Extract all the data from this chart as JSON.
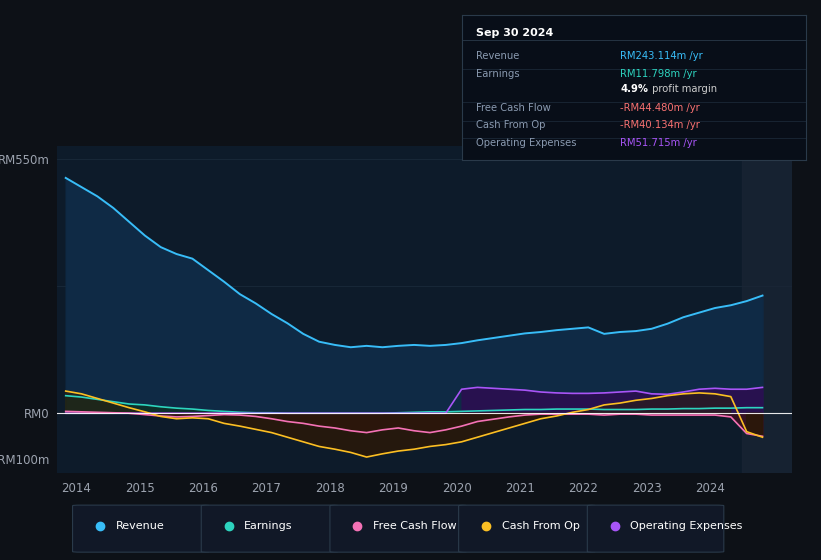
{
  "bg_color": "#0d1117",
  "panel_bg": "#0d1b2a",
  "text_color": "#9ca3af",
  "grid_color": "#1a2a3a",
  "revenue_color": "#38bdf8",
  "revenue_fill": "#0f2a45",
  "earnings_color": "#2dd4bf",
  "earnings_fill": "#0d3028",
  "fcf_color": "#f472b6",
  "fcf_fill_neg": "#3a1020",
  "cashfromop_color": "#fbbf24",
  "cashfromop_fill_neg": "#2a1808",
  "opex_color": "#a855f7",
  "opex_fill": "#2a1050",
  "tooltip_bg": "#080e18",
  "tooltip_border": "#2a3a4a",
  "xlim": [
    2013.7,
    2025.3
  ],
  "ylim": [
    -130,
    580
  ],
  "xticks": [
    2014,
    2015,
    2016,
    2017,
    2018,
    2019,
    2020,
    2021,
    2022,
    2023,
    2024
  ],
  "ylabel_550": "RM550m",
  "ylabel_0": "RM0",
  "ylabel_n100": "-RM100m",
  "years": [
    2013.83,
    2014.08,
    2014.33,
    2014.58,
    2014.83,
    2015.08,
    2015.33,
    2015.58,
    2015.83,
    2016.08,
    2016.33,
    2016.58,
    2016.83,
    2017.08,
    2017.33,
    2017.58,
    2017.83,
    2018.08,
    2018.33,
    2018.58,
    2018.83,
    2019.08,
    2019.33,
    2019.58,
    2019.83,
    2020.08,
    2020.33,
    2020.58,
    2020.83,
    2021.08,
    2021.33,
    2021.58,
    2021.83,
    2022.08,
    2022.33,
    2022.58,
    2022.83,
    2023.08,
    2023.33,
    2023.58,
    2023.83,
    2024.08,
    2024.33,
    2024.58,
    2024.83
  ],
  "revenue": [
    510,
    490,
    470,
    445,
    415,
    385,
    360,
    345,
    335,
    310,
    285,
    258,
    238,
    215,
    195,
    172,
    155,
    148,
    143,
    146,
    143,
    146,
    148,
    146,
    148,
    152,
    158,
    163,
    168,
    173,
    176,
    180,
    183,
    186,
    172,
    176,
    178,
    183,
    194,
    208,
    218,
    228,
    234,
    243,
    255
  ],
  "earnings": [
    38,
    35,
    30,
    25,
    20,
    18,
    14,
    11,
    9,
    6,
    4,
    2,
    1,
    1,
    0,
    0,
    0,
    0,
    0,
    0,
    0,
    1,
    2,
    3,
    3,
    4,
    5,
    6,
    7,
    8,
    8,
    9,
    9,
    9,
    8,
    8,
    8,
    9,
    9,
    10,
    10,
    11,
    11,
    12,
    12
  ],
  "free_cash_flow": [
    4,
    3,
    2,
    1,
    0,
    -3,
    -6,
    -8,
    -7,
    -5,
    -3,
    -4,
    -7,
    -12,
    -18,
    -22,
    -28,
    -32,
    -38,
    -42,
    -36,
    -32,
    -38,
    -42,
    -36,
    -28,
    -18,
    -13,
    -8,
    -4,
    -2,
    -2,
    -2,
    -2,
    -4,
    -2,
    -2,
    -4,
    -4,
    -4,
    -4,
    -4,
    -8,
    -44,
    -50
  ],
  "cash_from_op": [
    48,
    42,
    32,
    22,
    12,
    3,
    -7,
    -12,
    -10,
    -12,
    -22,
    -28,
    -35,
    -42,
    -52,
    -62,
    -72,
    -78,
    -85,
    -95,
    -88,
    -82,
    -78,
    -72,
    -68,
    -62,
    -52,
    -42,
    -32,
    -22,
    -12,
    -6,
    2,
    8,
    18,
    22,
    28,
    32,
    38,
    42,
    44,
    42,
    36,
    -40,
    -52
  ],
  "op_expenses": [
    0,
    0,
    0,
    0,
    0,
    0,
    0,
    0,
    0,
    0,
    0,
    0,
    0,
    0,
    0,
    0,
    0,
    0,
    0,
    0,
    0,
    0,
    0,
    0,
    0,
    52,
    56,
    54,
    52,
    50,
    46,
    44,
    43,
    43,
    44,
    46,
    48,
    42,
    41,
    46,
    52,
    54,
    52,
    52,
    56
  ],
  "tooltip_title": "Sep 30 2024",
  "tooltip_rows": [
    {
      "label": "Revenue",
      "value": "RM243.114m /yr",
      "vcolor": "#38bdf8"
    },
    {
      "label": "Earnings",
      "value": "RM11.798m /yr",
      "vcolor": "#2dd4bf"
    },
    {
      "label": "",
      "value": "4.9%",
      "value2": " profit margin",
      "vcolor": "#ffffff"
    },
    {
      "label": "Free Cash Flow",
      "value": "-RM44.480m /yr",
      "vcolor": "#f87171"
    },
    {
      "label": "Cash From Op",
      "value": "-RM40.134m /yr",
      "vcolor": "#f87171"
    },
    {
      "label": "Operating Expenses",
      "value": "RM51.715m /yr",
      "vcolor": "#a855f7"
    }
  ],
  "legend_items": [
    {
      "label": "Revenue",
      "color": "#38bdf8"
    },
    {
      "label": "Earnings",
      "color": "#2dd4bf"
    },
    {
      "label": "Free Cash Flow",
      "color": "#f472b6"
    },
    {
      "label": "Cash From Op",
      "color": "#fbbf24"
    },
    {
      "label": "Operating Expenses",
      "color": "#a855f7"
    }
  ]
}
